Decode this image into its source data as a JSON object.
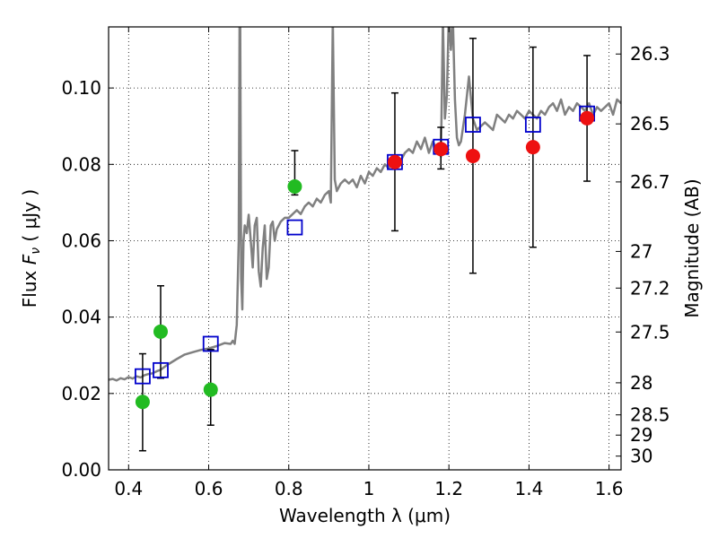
{
  "chart_data": {
    "type": "scatter",
    "xlabel": "Wavelength  λ (μm)",
    "ylabel": "Flux  F_ν  ( μJy )",
    "ylabel_right": "Magnitude (AB)",
    "xlim": [
      0.35,
      1.63
    ],
    "ylim": [
      0.0,
      0.116
    ],
    "grid": true,
    "x_ticks": [
      0.4,
      0.6,
      0.8,
      1.0,
      1.2,
      1.4,
      1.6
    ],
    "x_tick_labels": [
      "0.4",
      "0.6",
      "0.8",
      "1",
      "1.2",
      "1.4",
      "1.6"
    ],
    "y_ticks": [
      0.0,
      0.02,
      0.04,
      0.06,
      0.08,
      0.1
    ],
    "y_tick_labels": [
      "0.00",
      "0.02",
      "0.04",
      "0.06",
      "0.08",
      "0.10"
    ],
    "right_ticks": [
      {
        "label": "26.3",
        "flux": 0.1089
      },
      {
        "label": "26.5",
        "flux": 0.0906
      },
      {
        "label": "26.7",
        "flux": 0.0754
      },
      {
        "label": "27",
        "flux": 0.0572
      },
      {
        "label": "27.2",
        "flux": 0.0476
      },
      {
        "label": "27.5",
        "flux": 0.0361
      },
      {
        "label": "28",
        "flux": 0.0228
      },
      {
        "label": "28.5",
        "flux": 0.0144
      },
      {
        "label": "29",
        "flux": 0.0091
      },
      {
        "label": "30",
        "flux": 0.0036
      }
    ],
    "series": [
      {
        "marker": "line",
        "color": "#808080",
        "x": [
          0.35,
          0.36,
          0.37,
          0.38,
          0.39,
          0.4,
          0.41,
          0.42,
          0.43,
          0.44,
          0.45,
          0.46,
          0.47,
          0.48,
          0.49,
          0.5,
          0.52,
          0.54,
          0.56,
          0.58,
          0.6,
          0.62,
          0.64,
          0.655,
          0.66,
          0.665,
          0.67,
          0.675,
          0.678,
          0.681,
          0.684,
          0.687,
          0.69,
          0.695,
          0.7,
          0.705,
          0.71,
          0.715,
          0.72,
          0.725,
          0.73,
          0.735,
          0.74,
          0.745,
          0.75,
          0.755,
          0.76,
          0.765,
          0.77,
          0.78,
          0.79,
          0.8,
          0.81,
          0.82,
          0.83,
          0.84,
          0.85,
          0.86,
          0.87,
          0.88,
          0.89,
          0.9,
          0.905,
          0.91,
          0.915,
          0.92,
          0.93,
          0.94,
          0.95,
          0.96,
          0.97,
          0.98,
          0.99,
          1.0,
          1.01,
          1.02,
          1.03,
          1.04,
          1.05,
          1.06,
          1.07,
          1.08,
          1.09,
          1.1,
          1.11,
          1.12,
          1.13,
          1.14,
          1.15,
          1.16,
          1.17,
          1.18,
          1.185,
          1.19,
          1.195,
          1.2,
          1.205,
          1.21,
          1.215,
          1.22,
          1.225,
          1.23,
          1.24,
          1.25,
          1.26,
          1.27,
          1.28,
          1.29,
          1.3,
          1.31,
          1.32,
          1.33,
          1.34,
          1.35,
          1.36,
          1.37,
          1.38,
          1.39,
          1.4,
          1.41,
          1.42,
          1.43,
          1.44,
          1.45,
          1.46,
          1.47,
          1.48,
          1.49,
          1.5,
          1.51,
          1.52,
          1.53,
          1.54,
          1.55,
          1.56,
          1.57,
          1.58,
          1.59,
          1.6,
          1.61,
          1.62,
          1.63
        ],
        "y": [
          0.0236,
          0.0238,
          0.0234,
          0.024,
          0.0237,
          0.0243,
          0.0239,
          0.0245,
          0.0242,
          0.0248,
          0.0251,
          0.0253,
          0.0258,
          0.0262,
          0.027,
          0.0277,
          0.029,
          0.0302,
          0.0308,
          0.0314,
          0.0318,
          0.0324,
          0.0332,
          0.033,
          0.0338,
          0.033,
          0.038,
          0.06,
          0.14,
          0.05,
          0.042,
          0.06,
          0.064,
          0.062,
          0.0668,
          0.06,
          0.053,
          0.064,
          0.066,
          0.052,
          0.048,
          0.058,
          0.064,
          0.05,
          0.053,
          0.064,
          0.065,
          0.06,
          0.063,
          0.065,
          0.066,
          0.066,
          0.067,
          0.068,
          0.067,
          0.069,
          0.07,
          0.069,
          0.071,
          0.07,
          0.072,
          0.073,
          0.07,
          0.118,
          0.076,
          0.073,
          0.075,
          0.076,
          0.075,
          0.076,
          0.074,
          0.077,
          0.075,
          0.078,
          0.077,
          0.079,
          0.078,
          0.08,
          0.079,
          0.081,
          0.082,
          0.081,
          0.083,
          0.084,
          0.083,
          0.086,
          0.084,
          0.087,
          0.083,
          0.086,
          0.084,
          0.082,
          0.118,
          0.092,
          0.098,
          0.12,
          0.11,
          0.118,
          0.097,
          0.087,
          0.085,
          0.086,
          0.093,
          0.103,
          0.092,
          0.089,
          0.09,
          0.091,
          0.09,
          0.089,
          0.093,
          0.092,
          0.091,
          0.093,
          0.092,
          0.094,
          0.093,
          0.092,
          0.094,
          0.093,
          0.092,
          0.094,
          0.093,
          0.095,
          0.096,
          0.094,
          0.097,
          0.093,
          0.095,
          0.094,
          0.096,
          0.095,
          0.094,
          0.096,
          0.093,
          0.095,
          0.094,
          0.095,
          0.096,
          0.093,
          0.097,
          0.096
        ]
      },
      {
        "marker": "circle",
        "color": "#22bb22",
        "x": [
          0.435,
          0.48,
          0.605,
          0.815
        ],
        "y": [
          0.0178,
          0.0362,
          0.021,
          0.0742
        ]
      },
      {
        "marker": "circle",
        "color": "#ee1111",
        "x": [
          1.065,
          1.18,
          1.26,
          1.41,
          1.545
        ],
        "y": [
          0.0806,
          0.084,
          0.0822,
          0.0845,
          0.0921
        ]
      },
      {
        "marker": "square",
        "color": "#0000cc",
        "x": [
          0.435,
          0.48,
          0.605,
          0.815,
          1.065,
          1.18,
          1.26,
          1.41,
          1.545
        ],
        "y": [
          0.0245,
          0.0261,
          0.033,
          0.0635,
          0.0806,
          0.0846,
          0.0904,
          0.0904,
          0.0933
        ]
      },
      {
        "marker": "errorbar",
        "color": "#000000",
        "x": [
          0.435,
          0.48,
          0.605,
          0.815,
          1.065,
          1.18,
          1.26,
          1.41,
          1.545
        ],
        "lo": [
          0.005,
          0.024,
          0.0117,
          0.072,
          0.0626,
          0.0788,
          0.0515,
          0.0583,
          0.0756
        ],
        "hi": [
          0.0304,
          0.0482,
          0.0315,
          0.0836,
          0.0987,
          0.0897,
          0.113,
          0.1107,
          0.1085
        ]
      }
    ]
  }
}
